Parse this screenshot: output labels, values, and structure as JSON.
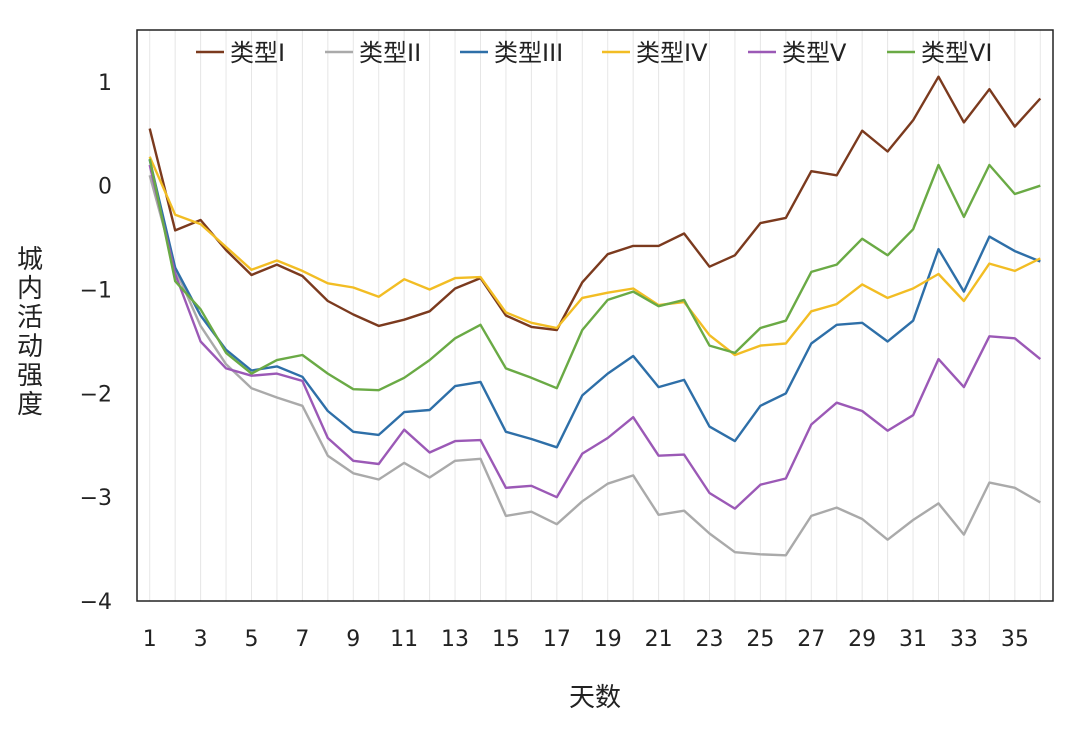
{
  "chart_data": {
    "type": "line",
    "xlabel": "天数",
    "ylabel": "城内活动强度",
    "xlim": [
      1,
      36
    ],
    "ylim": [
      -4,
      1.5
    ],
    "x_ticks": [
      1,
      3,
      5,
      7,
      9,
      11,
      13,
      15,
      17,
      19,
      21,
      23,
      25,
      27,
      29,
      31,
      33,
      35
    ],
    "y_ticks": [
      1,
      0,
      -1,
      -2,
      -3,
      -4
    ],
    "y_tick_labels": [
      "1",
      "0",
      "−1",
      "−2",
      "−3",
      "−4"
    ],
    "x": [
      1,
      2,
      3,
      4,
      5,
      6,
      7,
      8,
      9,
      10,
      11,
      12,
      13,
      14,
      15,
      16,
      17,
      18,
      19,
      20,
      21,
      22,
      23,
      24,
      25,
      26,
      27,
      28,
      29,
      30,
      31,
      32,
      33,
      34,
      35,
      36
    ],
    "grid": "vertical",
    "legend": "top",
    "series": [
      {
        "name": "类型I",
        "color": "#7b3a1e",
        "values": [
          0.55,
          -0.43,
          -0.33,
          -0.62,
          -0.86,
          -0.76,
          -0.87,
          -1.11,
          -1.24,
          -1.35,
          -1.29,
          -1.21,
          -0.99,
          -0.89,
          -1.25,
          -1.36,
          -1.39,
          -0.93,
          -0.66,
          -0.58,
          -0.58,
          -0.46,
          -0.78,
          -0.67,
          -0.36,
          -0.31,
          0.14,
          0.1,
          0.53,
          0.33,
          0.63,
          1.05,
          0.61,
          0.93,
          0.57,
          0.84
        ]
      },
      {
        "name": "类型II",
        "color": "#aaaaaa",
        "values": [
          0.1,
          -0.8,
          -1.35,
          -1.72,
          -1.95,
          -2.04,
          -2.12,
          -2.6,
          -2.77,
          -2.83,
          -2.67,
          -2.81,
          -2.65,
          -2.63,
          -3.18,
          -3.14,
          -3.26,
          -3.04,
          -2.87,
          -2.79,
          -3.17,
          -3.13,
          -3.35,
          -3.53,
          -3.55,
          -3.56,
          -3.18,
          -3.1,
          -3.21,
          -3.41,
          -3.22,
          -3.06,
          -3.36,
          -2.86,
          -2.91,
          -3.05
        ]
      },
      {
        "name": "类型III",
        "color": "#2e6fa8",
        "values": [
          0.25,
          -0.79,
          -1.25,
          -1.58,
          -1.78,
          -1.74,
          -1.84,
          -2.17,
          -2.37,
          -2.4,
          -2.18,
          -2.16,
          -1.93,
          -1.89,
          -2.37,
          -2.44,
          -2.52,
          -2.02,
          -1.81,
          -1.64,
          -1.94,
          -1.87,
          -2.32,
          -2.46,
          -2.12,
          -2.0,
          -1.52,
          -1.34,
          -1.32,
          -1.5,
          -1.3,
          -0.61,
          -1.02,
          -0.49,
          -0.63,
          -0.73
        ]
      },
      {
        "name": "类型IV",
        "color": "#f2bd24",
        "values": [
          0.28,
          -0.28,
          -0.37,
          -0.59,
          -0.81,
          -0.72,
          -0.82,
          -0.94,
          -0.98,
          -1.07,
          -0.9,
          -1.0,
          -0.89,
          -0.88,
          -1.22,
          -1.32,
          -1.37,
          -1.08,
          -1.03,
          -0.99,
          -1.15,
          -1.12,
          -1.44,
          -1.63,
          -1.54,
          -1.52,
          -1.21,
          -1.14,
          -0.95,
          -1.08,
          -0.99,
          -0.85,
          -1.11,
          -0.75,
          -0.82,
          -0.7
        ]
      },
      {
        "name": "类型V",
        "color": "#9b59b6",
        "values": [
          0.2,
          -0.85,
          -1.5,
          -1.76,
          -1.83,
          -1.81,
          -1.88,
          -2.43,
          -2.65,
          -2.68,
          -2.35,
          -2.57,
          -2.46,
          -2.45,
          -2.91,
          -2.89,
          -3.0,
          -2.58,
          -2.43,
          -2.23,
          -2.6,
          -2.59,
          -2.96,
          -3.11,
          -2.88,
          -2.82,
          -2.3,
          -2.09,
          -2.17,
          -2.36,
          -2.21,
          -1.67,
          -1.94,
          -1.45,
          -1.47,
          -1.67
        ]
      },
      {
        "name": "类型VI",
        "color": "#6aaa45",
        "values": [
          0.26,
          -0.92,
          -1.19,
          -1.61,
          -1.81,
          -1.68,
          -1.63,
          -1.81,
          -1.96,
          -1.97,
          -1.85,
          -1.68,
          -1.47,
          -1.34,
          -1.76,
          -1.85,
          -1.95,
          -1.39,
          -1.1,
          -1.02,
          -1.16,
          -1.1,
          -1.54,
          -1.61,
          -1.37,
          -1.3,
          -0.83,
          -0.76,
          -0.51,
          -0.67,
          -0.42,
          0.2,
          -0.3,
          0.2,
          -0.08,
          0.0
        ]
      }
    ]
  }
}
